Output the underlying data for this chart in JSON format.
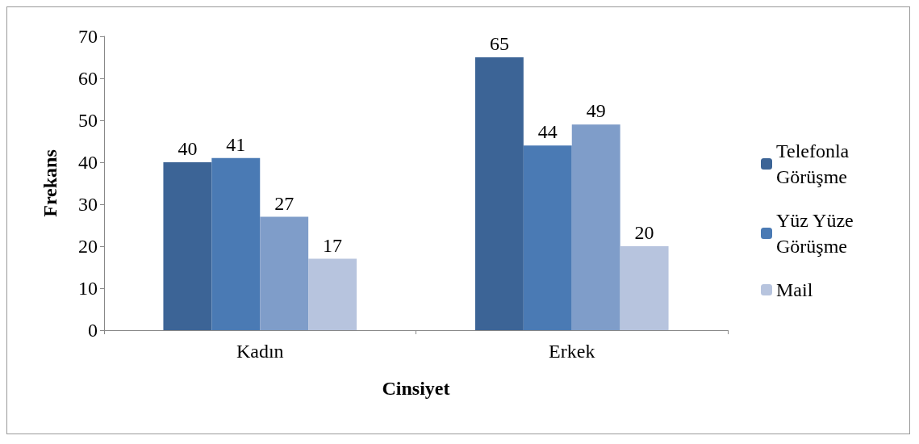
{
  "chart_data": {
    "type": "bar",
    "xlabel": "Cinsiyet",
    "ylabel": "Frekans",
    "categories": [
      "Kadın",
      "Erkek"
    ],
    "series": [
      {
        "name": "Telefonla Görüşme",
        "color": "#3c6496",
        "values": [
          40,
          65
        ]
      },
      {
        "name": "Yüz Yüze Görüşme",
        "color": "#4a7ab4",
        "values": [
          41,
          44
        ]
      },
      {
        "color": "#7f9dc9",
        "values": [
          27,
          49
        ]
      },
      {
        "name": "Mail",
        "color": "#b7c4de",
        "values": [
          17,
          20
        ]
      }
    ],
    "ylim": [
      0,
      70
    ],
    "yticks": [
      0,
      10,
      20,
      30,
      40,
      50,
      60,
      70
    ],
    "data_labels": true,
    "grid": false,
    "legend": "right"
  }
}
